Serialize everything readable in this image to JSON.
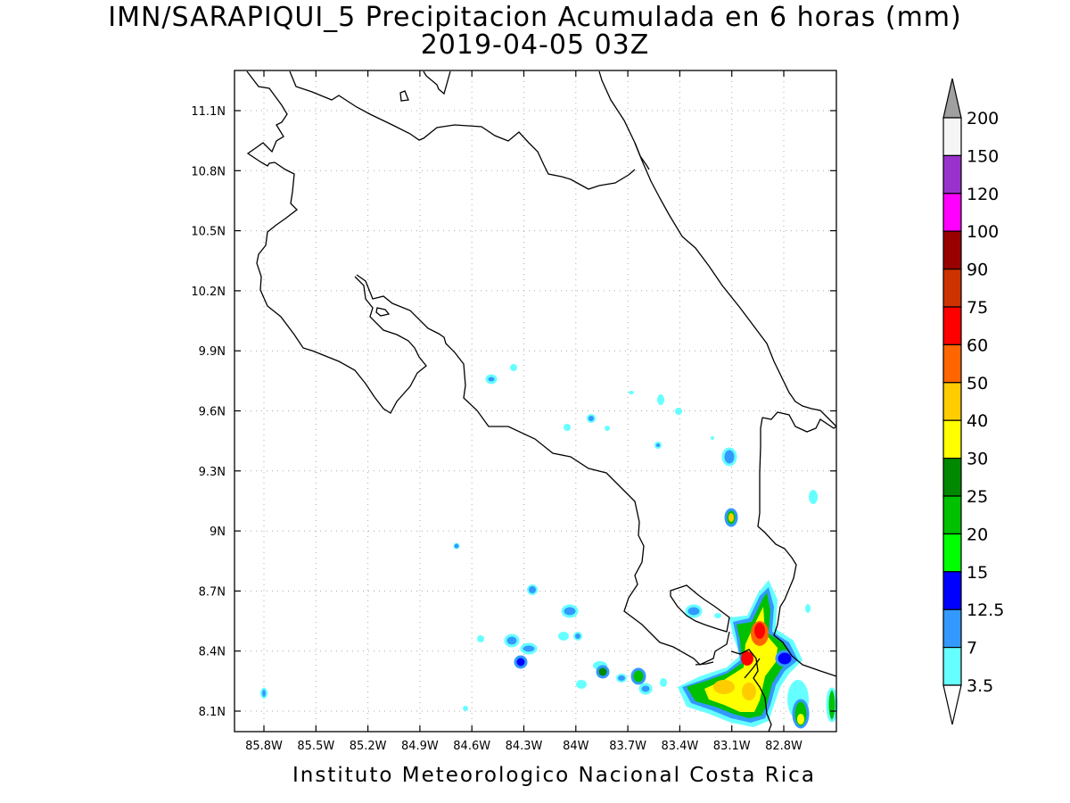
{
  "title_line1": "IMN/SARAPIQUI_5 Precipitacion Acumulada en 6 horas (mm)",
  "title_line2": "2019-04-05 03Z",
  "footer": "Instituto Meteorologico Nacional Costa Rica",
  "axes": {
    "lon_labels": [
      "85.8W",
      "85.5W",
      "85.2W",
      "84.9W",
      "84.6W",
      "84.3W",
      "84W",
      "83.7W",
      "83.4W",
      "83.1W",
      "82.8W"
    ],
    "lat_labels": [
      "11.1N",
      "10.8N",
      "10.5N",
      "10.2N",
      "9.9N",
      "9.6N",
      "9.3N",
      "9N",
      "8.7N",
      "8.4N",
      "8.1N"
    ],
    "grid": "dotted"
  },
  "colorbar": {
    "labels": [
      "200",
      "150",
      "120",
      "100",
      "90",
      "75",
      "60",
      "50",
      "40",
      "30",
      "25",
      "20",
      "15",
      "12.5",
      "7",
      "3.5"
    ],
    "colors": [
      "#f5f5f5",
      "#9932cc",
      "#ff00ff",
      "#990000",
      "#cc3300",
      "#ff0000",
      "#ff6600",
      "#ffcc00",
      "#ffff00",
      "#008800",
      "#00c000",
      "#00ff00",
      "#0000ff",
      "#3399ff",
      "#66ffff"
    ],
    "top_arrow_color": "#a0a0a0",
    "bottom_arrow_color": "#ffffff"
  }
}
